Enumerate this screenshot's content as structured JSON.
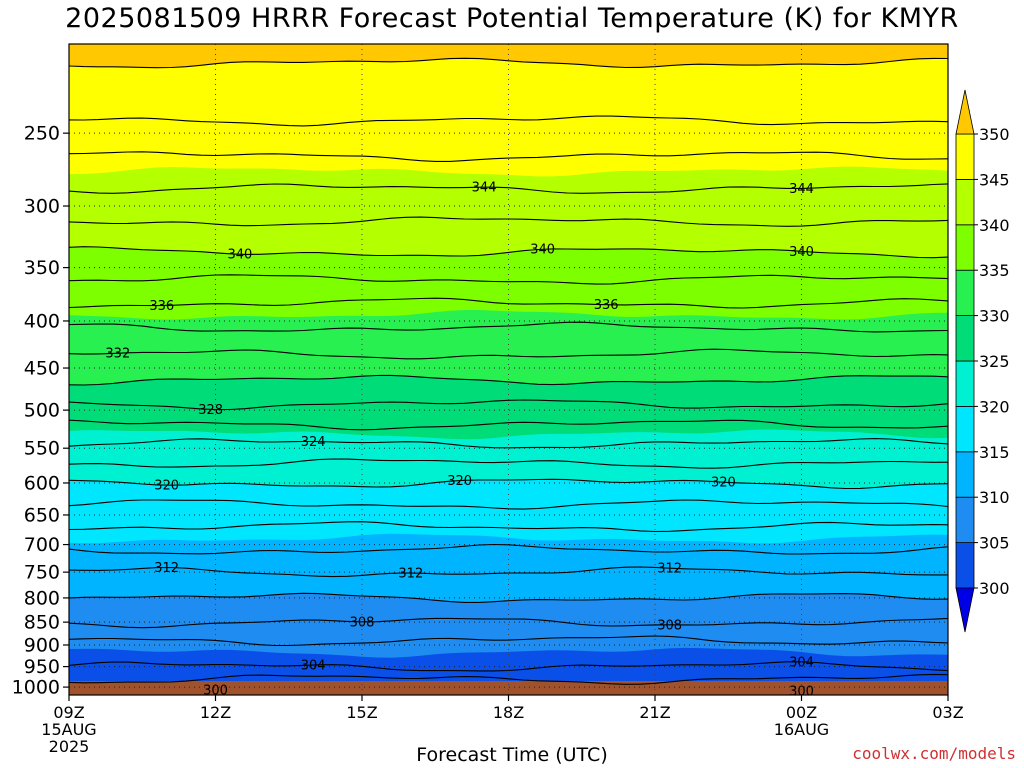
{
  "title": "2025081509 HRRR Forecast Potential Temperature (K) for KMYR",
  "credit": "coolwx.com/models",
  "chart_data": {
    "type": "heatmap",
    "title": "2025081509 HRRR Forecast Potential Temperature (K) for KMYR",
    "xlabel": "Forecast Time (UTC)",
    "ylabel": "",
    "x_ticks": [
      {
        "hour": 0,
        "label": "09Z",
        "sub": [
          "15AUG",
          "2025"
        ]
      },
      {
        "hour": 3,
        "label": "12Z",
        "sub": []
      },
      {
        "hour": 6,
        "label": "15Z",
        "sub": []
      },
      {
        "hour": 9,
        "label": "18Z",
        "sub": []
      },
      {
        "hour": 12,
        "label": "21Z",
        "sub": []
      },
      {
        "hour": 15,
        "label": "00Z",
        "sub": [
          "16AUG"
        ]
      },
      {
        "hour": 18,
        "label": "03Z",
        "sub": []
      }
    ],
    "xlim": [
      0,
      18
    ],
    "y_scale": "log-pressure",
    "ylim": [
      1020,
      200
    ],
    "y_ticks": [
      250,
      300,
      350,
      400,
      450,
      500,
      550,
      600,
      650,
      700,
      750,
      800,
      850,
      900,
      950,
      1000
    ],
    "grid": true,
    "colorbar": {
      "levels": [
        300,
        305,
        310,
        315,
        320,
        325,
        330,
        335,
        340,
        345,
        350
      ],
      "labels": [
        "300",
        "305",
        "310",
        "315",
        "320",
        "325",
        "330",
        "335",
        "340",
        "345",
        "350"
      ],
      "colors": [
        "#0000e6",
        "#0a50e8",
        "#1e8cf0",
        "#00b4ff",
        "#00e6ff",
        "#00f0d2",
        "#00dc78",
        "#28f050",
        "#7dff00",
        "#b4ff00",
        "#ffff00",
        "#ffc800"
      ],
      "extend": "both"
    },
    "contour_interval": 2,
    "contour_labels": [
      {
        "value": 344,
        "hour": 8.5
      },
      {
        "value": 344,
        "hour": 15.0
      },
      {
        "value": 340,
        "hour": 3.5
      },
      {
        "value": 340,
        "hour": 9.7
      },
      {
        "value": 340,
        "hour": 15.0
      },
      {
        "value": 336,
        "hour": 1.9
      },
      {
        "value": 336,
        "hour": 11.0
      },
      {
        "value": 332,
        "hour": 1.0
      },
      {
        "value": 328,
        "hour": 2.9
      },
      {
        "value": 324,
        "hour": 5.0
      },
      {
        "value": 320,
        "hour": 2.0
      },
      {
        "value": 320,
        "hour": 8.0
      },
      {
        "value": 320,
        "hour": 13.4
      },
      {
        "value": 312,
        "hour": 2.0
      },
      {
        "value": 312,
        "hour": 7.0
      },
      {
        "value": 312,
        "hour": 12.3
      },
      {
        "value": 308,
        "hour": 6.0
      },
      {
        "value": 308,
        "hour": 12.3
      },
      {
        "value": 304,
        "hour": 5.0
      },
      {
        "value": 304,
        "hour": 15.0
      },
      {
        "value": 300,
        "hour": 3.0
      },
      {
        "value": 300,
        "hour": 15.0
      }
    ],
    "profile": [
      [
        1000,
        300.5
      ],
      [
        980,
        302
      ],
      [
        950,
        304
      ],
      [
        900,
        305.5
      ],
      [
        850,
        308
      ],
      [
        800,
        310
      ],
      [
        750,
        312
      ],
      [
        700,
        314.5
      ],
      [
        650,
        317
      ],
      [
        600,
        320
      ],
      [
        550,
        323.5
      ],
      [
        500,
        327.5
      ],
      [
        450,
        331
      ],
      [
        400,
        334.5
      ],
      [
        350,
        339
      ],
      [
        300,
        343
      ],
      [
        275,
        345
      ],
      [
        250,
        347.5
      ],
      [
        220,
        349.5
      ],
      [
        200,
        350.5
      ]
    ]
  }
}
